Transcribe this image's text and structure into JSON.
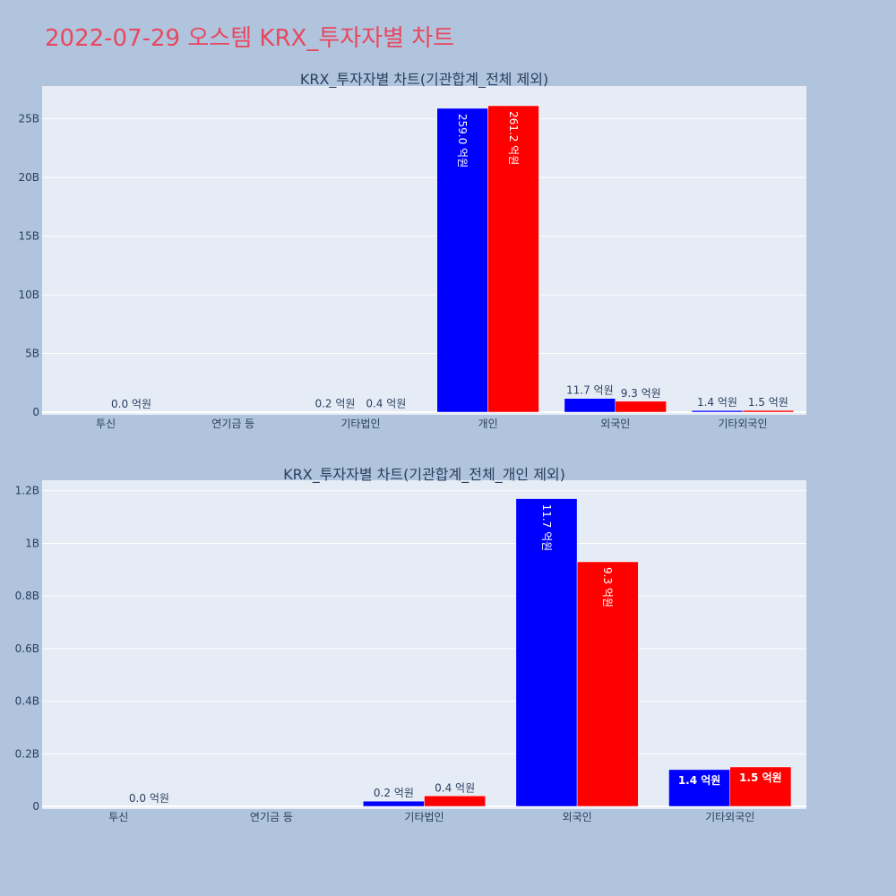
{
  "page_title": "2022-07-29 오스템 KRX_투자자별 차트",
  "colors": {
    "buy": "#0000ff",
    "sell": "#ff0000",
    "title": "#e8485f",
    "plot_bg": "#e5ecf6",
    "page_bg": "#b0c4de"
  },
  "chart_data": [
    {
      "type": "bar",
      "title": "KRX_투자자별 차트(기관합계_전체 제외)",
      "categories": [
        "투신",
        "연기금 등",
        "기타법인",
        "개인",
        "외국인",
        "기타외국인"
      ],
      "series": [
        {
          "values": [
            0,
            0,
            20000000,
            25900000000,
            1170000000,
            140000000
          ],
          "labels": [
            "",
            "",
            "0.2 억원",
            "259.0 억원",
            "11.7 억원",
            "1.4 억원"
          ]
        },
        {
          "values": [
            0,
            0,
            40000000,
            26120000000,
            930000000,
            150000000
          ],
          "labels": [
            "0.0 억원",
            "",
            "0.4 억원",
            "261.2 억원",
            "9.3 억원",
            "1.5 억원"
          ]
        }
      ],
      "ylim": [
        0,
        27800000000
      ],
      "yticks": [
        0,
        5000000000,
        10000000000,
        15000000000,
        20000000000,
        25000000000
      ],
      "ytick_labels": [
        "0",
        "5B",
        "10B",
        "15B",
        "20B",
        "25B"
      ],
      "grid": true,
      "legend": "none"
    },
    {
      "type": "bar",
      "title": "KRX_투자자별 차트(기관합계_전체_개인 제외)",
      "categories": [
        "투신",
        "연기금 등",
        "기타법인",
        "외국인",
        "기타외국인"
      ],
      "series": [
        {
          "values": [
            0,
            0,
            20000000,
            1170000000,
            140000000
          ],
          "labels": [
            "",
            "",
            "0.2 억원",
            "11.7 억원",
            "1.4 억원"
          ]
        },
        {
          "values": [
            0,
            0,
            40000000,
            930000000,
            150000000
          ],
          "labels": [
            "0.0 억원",
            "",
            "0.4 억원",
            "9.3 억원",
            "1.5 억원"
          ]
        }
      ],
      "ylim": [
        0,
        1240000000
      ],
      "yticks": [
        0,
        200000000,
        400000000,
        600000000,
        800000000,
        1000000000,
        1200000000
      ],
      "ytick_labels": [
        "0",
        "0.2B",
        "0.4B",
        "0.6B",
        "0.8B",
        "1B",
        "1.2B"
      ],
      "grid": true,
      "legend": "none"
    }
  ]
}
